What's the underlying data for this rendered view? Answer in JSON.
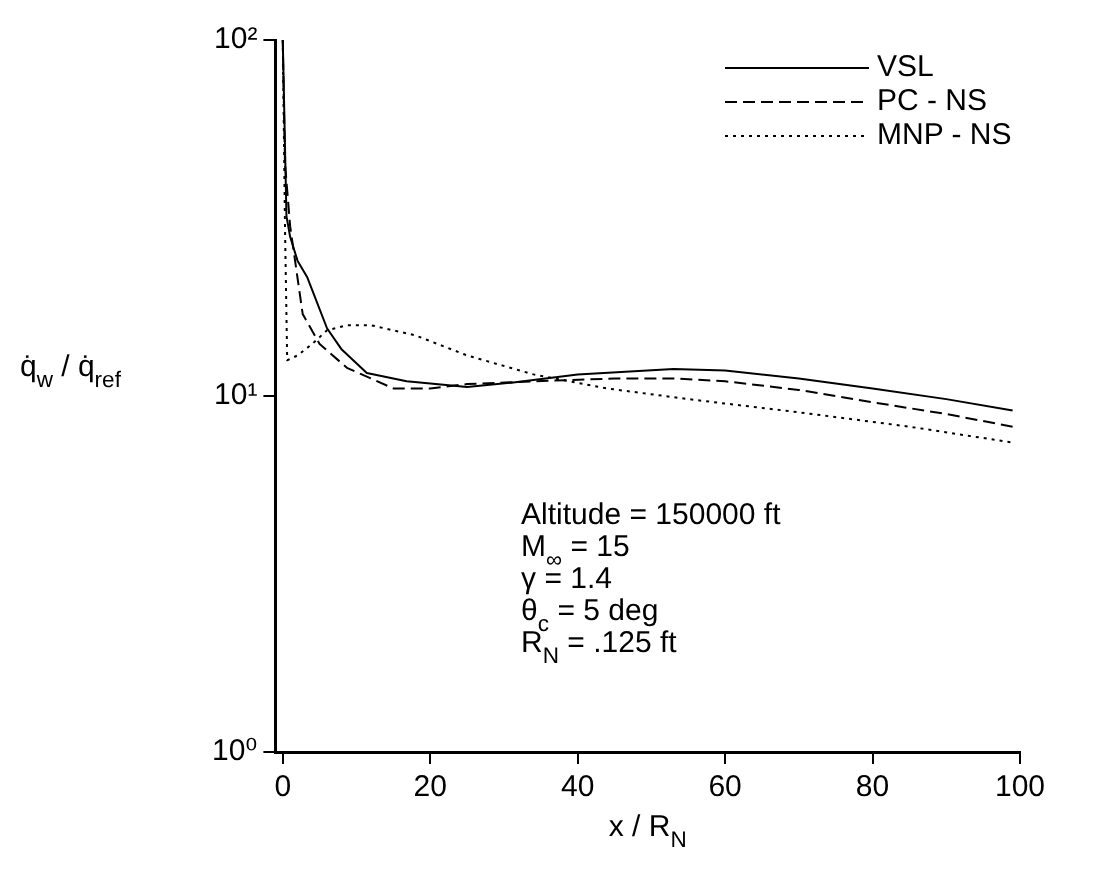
{
  "chart_data": {
    "type": "line",
    "xlabel": "x / R$_{N}$",
    "ylabel": "q̇$_{w}$ / q̇$_{ref}$",
    "xlim": [
      -1,
      100
    ],
    "xticks": [
      0,
      20,
      40,
      60,
      80,
      100
    ],
    "ylim": [
      1,
      100
    ],
    "yticks": [
      {
        "value": 1,
        "label": "10⁰"
      },
      {
        "value": 10,
        "label": "10¹"
      },
      {
        "value": 100,
        "label": "10²"
      }
    ],
    "log": "y",
    "grid": false,
    "legend": "top right",
    "marker": "none",
    "series": [
      {
        "name": "VSL",
        "color": "#000000",
        "line_style": "solid",
        "x": [
          0,
          0.5,
          1,
          2,
          3.3,
          6,
          8,
          11.4,
          16.8,
          25,
          31,
          40,
          53,
          60,
          70,
          80,
          90,
          99
        ],
        "values": [
          100,
          32,
          28,
          24,
          21.6,
          15.5,
          13.5,
          11.6,
          11,
          10.6,
          10.9,
          11.5,
          11.9,
          11.8,
          11.2,
          10.5,
          9.8,
          9.1
        ]
      },
      {
        "name": "PC - NS",
        "color": "#000000",
        "line_style": "dashed",
        "x": [
          0,
          0.3,
          1,
          2.7,
          5,
          8.7,
          15,
          20,
          25,
          34,
          45,
          53,
          60,
          70,
          80,
          90,
          99
        ],
        "values": [
          100,
          45,
          30,
          17,
          14,
          12,
          10.5,
          10.5,
          10.8,
          11,
          11.2,
          11.2,
          11,
          10.4,
          9.6,
          8.9,
          8.2
        ]
      },
      {
        "name": "MNP - NS",
        "color": "#000000",
        "line_style": "dotted",
        "x": [
          0,
          0.3,
          0.6,
          2,
          4,
          6,
          8.7,
          12,
          18,
          25,
          34,
          44,
          55,
          70,
          85,
          99
        ],
        "values": [
          100,
          30,
          12.6,
          13,
          14,
          15.3,
          15.8,
          15.8,
          14.8,
          13,
          11.5,
          10.5,
          9.8,
          9,
          8.2,
          7.4
        ]
      }
    ],
    "annotations": [
      "Altitude = 150000 ft",
      "M$_{∞}$ = 15",
      "γ = 1.4",
      "θ$_{c}$ = 5 deg",
      "R$_{N}$ = .125 ft"
    ]
  }
}
